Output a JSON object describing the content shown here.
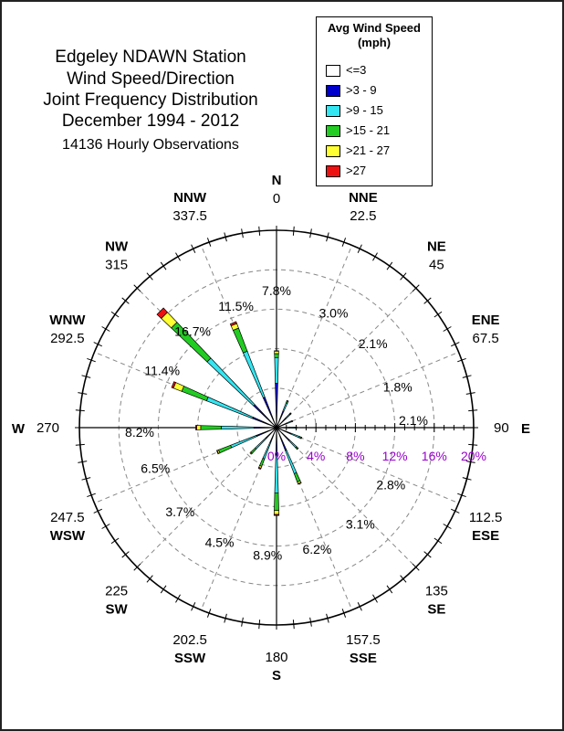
{
  "title": {
    "line1": "Edgeley NDAWN Station",
    "line2": "Wind Speed/Direction",
    "line3": "Joint Frequency Distribution",
    "line4": "December 1994 - 2012",
    "line5": "14136 Hourly Observations"
  },
  "legend": {
    "title_line1": "Avg Wind Speed",
    "title_line2": "(mph)",
    "items": [
      {
        "label": "<=3",
        "color": "#ffffff"
      },
      {
        "label": ">3 - 9",
        "color": "#0000cc"
      },
      {
        "label": ">9 - 15",
        "color": "#33e6f2"
      },
      {
        "label": ">15 - 21",
        "color": "#22cc22"
      },
      {
        "label": ">21 - 27",
        "color": "#ffff33"
      },
      {
        "label": ">27",
        "color": "#ee1111"
      }
    ]
  },
  "chart_data": {
    "type": "polar-stacked-bar",
    "radial_axis": {
      "max": 20,
      "ticks": [
        0,
        4,
        8,
        12,
        16,
        20
      ],
      "tick_labels": [
        "0%",
        "4%",
        "8%",
        "12%",
        "16%",
        "20%"
      ],
      "label_color": "#9900cc"
    },
    "directions": [
      {
        "deg": 0,
        "abbr": "N",
        "deg_label": "0"
      },
      {
        "deg": 22.5,
        "abbr": "NNE",
        "deg_label": "22.5"
      },
      {
        "deg": 45,
        "abbr": "NE",
        "deg_label": "45"
      },
      {
        "deg": 67.5,
        "abbr": "ENE",
        "deg_label": "67.5"
      },
      {
        "deg": 90,
        "abbr": "E",
        "deg_label": "90"
      },
      {
        "deg": 112.5,
        "abbr": "ESE",
        "deg_label": "112.5"
      },
      {
        "deg": 135,
        "abbr": "SE",
        "deg_label": "135"
      },
      {
        "deg": 157.5,
        "abbr": "SSE",
        "deg_label": "157.5"
      },
      {
        "deg": 180,
        "abbr": "S",
        "deg_label": "180"
      },
      {
        "deg": 202.5,
        "abbr": "SSW",
        "deg_label": "202.5"
      },
      {
        "deg": 225,
        "abbr": "SW",
        "deg_label": "225"
      },
      {
        "deg": 247.5,
        "abbr": "WSW",
        "deg_label": "247.5"
      },
      {
        "deg": 270,
        "abbr": "W",
        "deg_label": "270"
      },
      {
        "deg": 292.5,
        "abbr": "WNW",
        "deg_label": "292.5"
      },
      {
        "deg": 315,
        "abbr": "NW",
        "deg_label": "315"
      },
      {
        "deg": 337.5,
        "abbr": "NNW",
        "deg_label": "337.5"
      }
    ],
    "frequency_labels": [
      {
        "deg": 0,
        "label": "7.8%"
      },
      {
        "deg": 22.5,
        "label": "3.0%"
      },
      {
        "deg": 45,
        "label": "2.1%"
      },
      {
        "deg": 67.5,
        "label": "1.8%"
      },
      {
        "deg": 90,
        "label": "2.1%"
      },
      {
        "deg": 112.5,
        "label": "2.8%"
      },
      {
        "deg": 135,
        "label": "3.1%"
      },
      {
        "deg": 157.5,
        "label": "6.2%"
      },
      {
        "deg": 180,
        "label": "8.9%"
      },
      {
        "deg": 202.5,
        "label": "4.5%"
      },
      {
        "deg": 225,
        "label": "3.7%"
      },
      {
        "deg": 247.5,
        "label": "6.5%"
      },
      {
        "deg": 270,
        "label": "8.2%"
      },
      {
        "deg": 292.5,
        "label": "11.4%"
      },
      {
        "deg": 315,
        "label": "16.7%"
      },
      {
        "deg": 337.5,
        "label": "11.5%"
      }
    ],
    "series": [
      {
        "name": "<=3",
        "values": [
          0,
          0,
          0,
          0,
          0,
          0,
          0,
          0,
          0,
          0,
          0,
          0,
          0,
          0,
          0,
          0
        ]
      },
      {
        "name": ">3 - 9",
        "values": [
          4.5,
          1.8,
          1.3,
          1.1,
          1.3,
          1.6,
          1.8,
          2.5,
          2.8,
          1.6,
          1.5,
          2.2,
          2.3,
          2.6,
          3.2,
          3.3
        ]
      },
      {
        "name": ">9 - 15",
        "values": [
          2.6,
          0.9,
          0.6,
          0.5,
          0.6,
          0.9,
          1.0,
          2.5,
          3.8,
          1.8,
          1.5,
          2.8,
          3.3,
          5.0,
          6.5,
          5.0
        ]
      },
      {
        "name": ">15 - 21",
        "values": [
          0.4,
          0.2,
          0.1,
          0.1,
          0.1,
          0.2,
          0.2,
          0.9,
          1.8,
          0.8,
          0.6,
          1.3,
          2.1,
          2.7,
          5.0,
          2.5
        ]
      },
      {
        "name": ">21 - 27",
        "values": [
          0.25,
          0.05,
          0.05,
          0.05,
          0.05,
          0.05,
          0.05,
          0.2,
          0.4,
          0.2,
          0.1,
          0.15,
          0.4,
          0.9,
          1.4,
          0.5
        ]
      },
      {
        "name": ">27",
        "values": [
          0.05,
          0,
          0,
          0,
          0,
          0,
          0,
          0.05,
          0.1,
          0.1,
          0,
          0.05,
          0.1,
          0.2,
          0.6,
          0.2
        ]
      }
    ]
  }
}
